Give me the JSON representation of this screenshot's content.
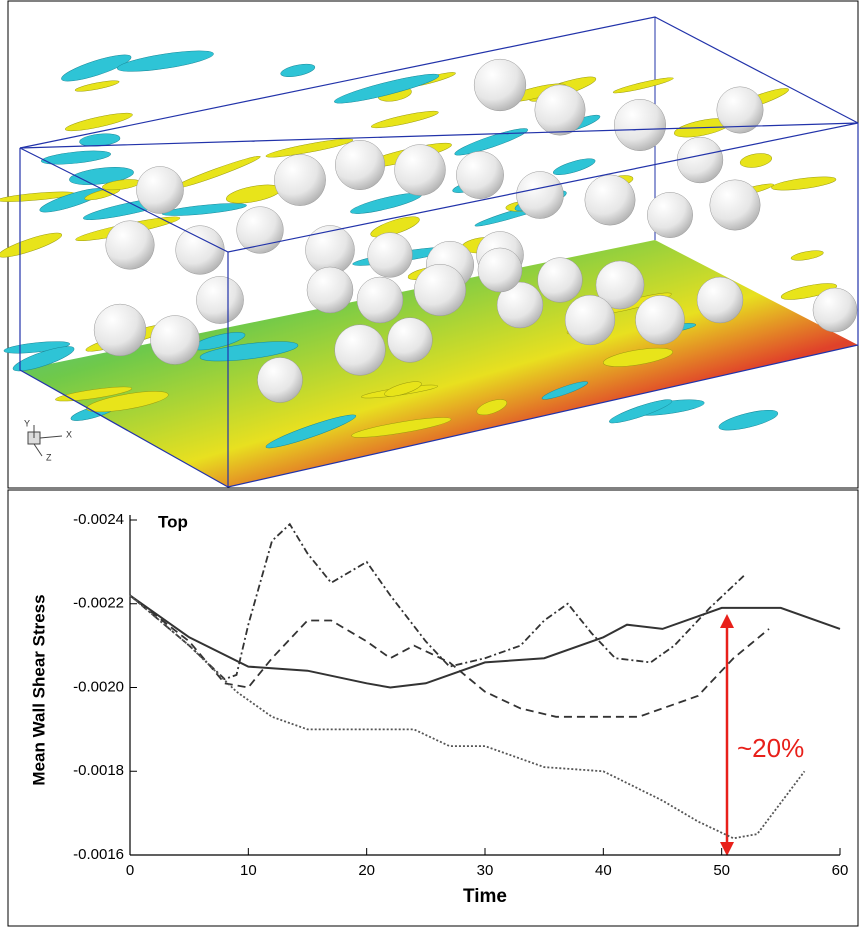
{
  "figure": {
    "triad_labels": [
      "Y",
      "X",
      "Z"
    ]
  },
  "chart_data": {
    "type": "line",
    "title": "Top",
    "y_label": "Mean Wall Shear Stress",
    "x_label": "Time",
    "annotation": "~20%",
    "xlim": [
      0,
      60
    ],
    "xticks": [
      0,
      10,
      20,
      30,
      40,
      50,
      60
    ],
    "ylim": [
      -0.0016,
      -0.0024
    ],
    "yticks": [
      -0.0024,
      -0.0022,
      {
        "value": -0.002,
        "label": "-0.0020"
      },
      -0.0018,
      -0.0016
    ],
    "series": [
      {
        "color": "#333333",
        "dash": "solid",
        "x": [
          0,
          5,
          10,
          15,
          20,
          22,
          25,
          30,
          35,
          40,
          42,
          45,
          48,
          50,
          55,
          60
        ],
        "values": [
          -0.00222,
          -0.00212,
          -0.00205,
          -0.00204,
          -0.00201,
          -0.002,
          -0.00201,
          -0.00206,
          -0.00207,
          -0.00212,
          -0.00215,
          -0.00214,
          -0.00217,
          -0.00219,
          -0.00219,
          -0.00214
        ]
      },
      {
        "color": "#333333",
        "dash": "dashed",
        "x": [
          0,
          5,
          8,
          10,
          12,
          15,
          17,
          20,
          22,
          24,
          27,
          30,
          33,
          36,
          40,
          43,
          45,
          48,
          51,
          54
        ],
        "values": [
          -0.00222,
          -0.00211,
          -0.00201,
          -0.002,
          -0.00207,
          -0.00216,
          -0.00216,
          -0.00211,
          -0.00207,
          -0.0021,
          -0.00206,
          -0.00199,
          -0.00195,
          -0.00193,
          -0.00193,
          -0.00193,
          -0.00195,
          -0.00198,
          -0.00207,
          -0.00214
        ]
      },
      {
        "color": "#333333",
        "dash": "dashdot",
        "x": [
          0,
          5,
          8,
          9,
          10,
          12,
          13.5,
          15,
          17,
          20,
          22,
          25,
          27,
          30,
          33,
          35,
          37,
          39,
          41,
          44,
          46,
          49,
          52
        ],
        "values": [
          -0.00222,
          -0.0021,
          -0.00202,
          -0.00203,
          -0.00215,
          -0.00235,
          -0.00239,
          -0.00232,
          -0.00225,
          -0.0023,
          -0.00222,
          -0.00211,
          -0.00205,
          -0.00207,
          -0.0021,
          -0.00216,
          -0.0022,
          -0.00213,
          -0.00207,
          -0.00206,
          -0.0021,
          -0.00219,
          -0.00227
        ]
      },
      {
        "color": "#555555",
        "dash": "dotted",
        "x": [
          0,
          5,
          9,
          12,
          15,
          20,
          24,
          27,
          30,
          35,
          40,
          45,
          48,
          51,
          53,
          57
        ],
        "values": [
          -0.00222,
          -0.0021,
          -0.00199,
          -0.00193,
          -0.0019,
          -0.0019,
          -0.0019,
          -0.00186,
          -0.00186,
          -0.00181,
          -0.0018,
          -0.00173,
          -0.00168,
          -0.00164,
          -0.00165,
          -0.0018
        ]
      }
    ]
  }
}
